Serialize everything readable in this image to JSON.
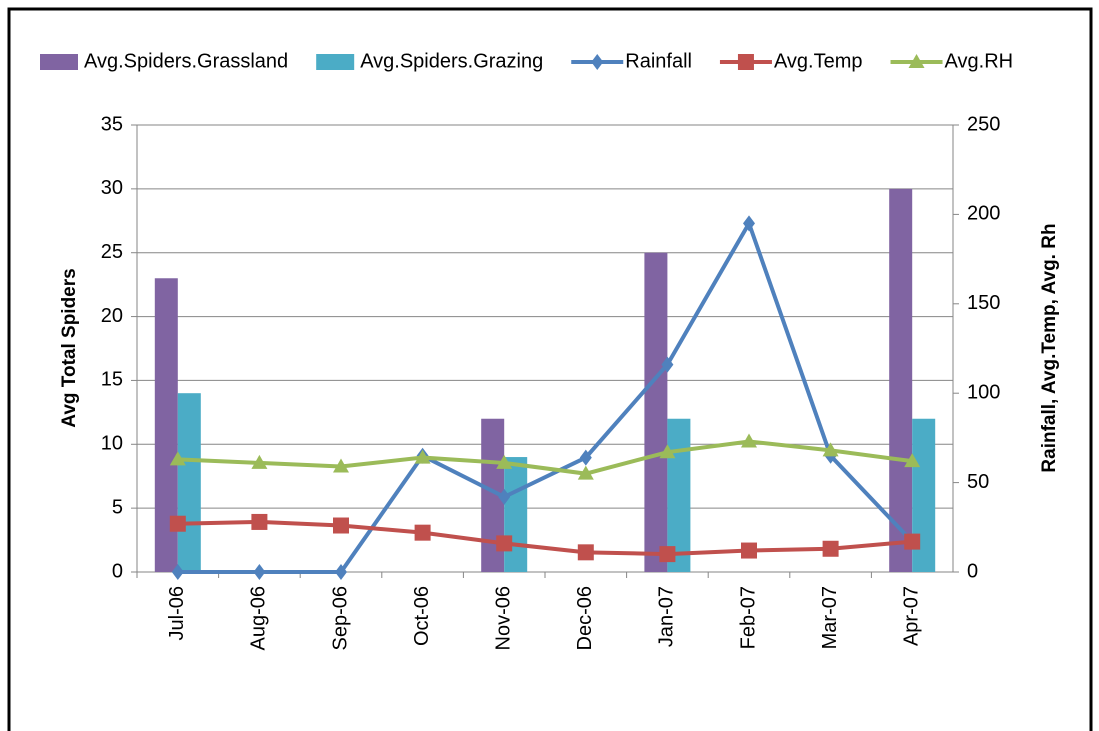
{
  "chart_data": {
    "type": "bar",
    "categories": [
      "Jul-06",
      "Aug-06",
      "Sep-06",
      "Oct-06",
      "Nov-06",
      "Dec-06",
      "Jan-07",
      "Feb-07",
      "Mar-07",
      "Apr-07"
    ],
    "series": [
      {
        "name": "Avg.Spiders.Grassland",
        "color": "#8064a2",
        "type": "bar",
        "values": [
          23,
          0,
          0,
          0,
          12,
          0,
          25,
          0,
          0,
          30
        ]
      },
      {
        "name": "Avg.Spiders.Grazing",
        "color": "#4bacc6",
        "type": "bar",
        "values": [
          14,
          0,
          0,
          0,
          9,
          0,
          12,
          0,
          0,
          12
        ]
      },
      {
        "name": "Rainfall",
        "color": "#4f81bd",
        "type": "line",
        "marker": "diamond",
        "axis": "y2",
        "values": [
          0,
          0,
          0,
          65,
          42,
          64,
          116,
          195,
          65,
          17
        ]
      },
      {
        "name": "Avg.Temp",
        "color": "#c0504d",
        "type": "line",
        "marker": "square",
        "axis": "y2",
        "values": [
          27,
          28,
          26,
          22,
          16,
          11,
          10,
          12,
          13,
          17
        ]
      },
      {
        "name": "Avg.RH",
        "color": "#9bbb59",
        "type": "line",
        "marker": "triangle",
        "axis": "y2",
        "values": [
          63,
          61,
          59,
          64,
          61,
          55,
          67,
          73,
          68,
          62
        ]
      }
    ],
    "ylabel": "Avg Total Spiders",
    "y2label": "Rainfall, Avg.Temp, Avg. Rh",
    "ylim": [
      0,
      35
    ],
    "yticks": [
      0,
      5,
      10,
      15,
      20,
      25,
      30,
      35
    ],
    "y2lim": [
      0,
      250
    ],
    "y2ticks": [
      0,
      50,
      100,
      150,
      200,
      250
    ],
    "grid": true,
    "legend": "top"
  }
}
